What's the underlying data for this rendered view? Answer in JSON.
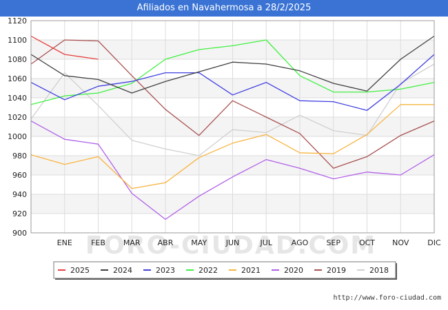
{
  "header": {
    "title": "Afiliados en Navahermosa a 28/2/2025"
  },
  "footer": {
    "url": "http://www.foro-ciudad.com"
  },
  "watermark": {
    "text": "FORO-CIUDAD.COM"
  },
  "chart_data": {
    "type": "line",
    "title": "Afiliados en Navahermosa a 28/2/2025",
    "xlabel": "",
    "ylabel": "",
    "categories": [
      "",
      "ENE",
      "FEB",
      "MAR",
      "ABR",
      "MAY",
      "JUN",
      "JUL",
      "AGO",
      "SEP",
      "OCT",
      "NOV",
      "DIC"
    ],
    "ylim": [
      900,
      1120
    ],
    "yticks": [
      900,
      920,
      940,
      960,
      980,
      1000,
      1020,
      1040,
      1060,
      1080,
      1100,
      1120
    ],
    "grid": true,
    "legend_position": "bottom",
    "series": [
      {
        "name": "2025",
        "color": "#e8403f",
        "values": [
          1104,
          1085,
          1080,
          null,
          null,
          null,
          null,
          null,
          null,
          null,
          null,
          null,
          null
        ]
      },
      {
        "name": "2024",
        "color": "#404040",
        "values": [
          1085,
          1063,
          1059,
          1045,
          1057,
          1067,
          1077,
          1075,
          1068,
          1055,
          1047,
          1080,
          1104
        ]
      },
      {
        "name": "2023",
        "color": "#4040e0",
        "values": [
          1056,
          1038,
          1052,
          1057,
          1066,
          1066,
          1043,
          1056,
          1037,
          1036,
          1027,
          1054,
          1085
        ]
      },
      {
        "name": "2022",
        "color": "#40f040",
        "values": [
          1033,
          1042,
          1045,
          1055,
          1080,
          1090,
          1094,
          1100,
          1063,
          1046,
          1046,
          1049,
          1056
        ]
      },
      {
        "name": "2021",
        "color": "#f8b440",
        "values": [
          981,
          971,
          979,
          946,
          952,
          978,
          993,
          1002,
          983,
          982,
          1002,
          1033,
          1033
        ]
      },
      {
        "name": "2020",
        "color": "#b060e8",
        "values": [
          1016,
          997,
          992,
          941,
          914,
          938,
          958,
          976,
          967,
          956,
          963,
          960,
          981
        ]
      },
      {
        "name": "2019",
        "color": "#a85050",
        "values": [
          1075,
          1100,
          1099,
          1063,
          1028,
          1001,
          1037,
          1020,
          1003,
          967,
          979,
          1001,
          1016
        ]
      },
      {
        "name": "2018",
        "color": "#d0d0d0",
        "values": [
          1018,
          1066,
          1032,
          996,
          987,
          980,
          1007,
          1004,
          1022,
          1006,
          1001,
          1055,
          1075
        ]
      }
    ]
  }
}
